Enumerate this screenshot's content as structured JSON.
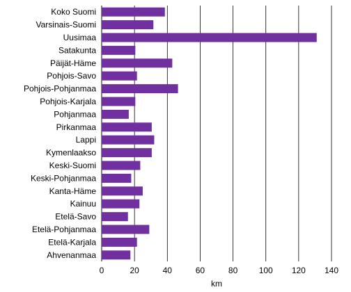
{
  "chart_data": {
    "type": "bar",
    "orientation": "horizontal",
    "categories": [
      "Koko Suomi",
      "Varsinais-Suomi",
      "Uusimaa",
      "Satakunta",
      "Päijät-Häme",
      "Pohjois-Savo",
      "Pohjois-Pohjanmaa",
      "Pohjois-Karjala",
      "Pohjanmaa",
      "Pirkanmaa",
      "Lappi",
      "Kymenlaakso",
      "Keski-Suomi",
      "Keski-Pohjanmaa",
      "Kanta-Häme",
      "Kainuu",
      "Etelä-Savo",
      "Etelä-Pohjanmaa",
      "Etelä-Karjala",
      "Ahvenanmaa"
    ],
    "values": [
      38.5,
      31.5,
      131,
      20.5,
      43,
      21.5,
      46.5,
      20.5,
      16.5,
      30.5,
      32,
      30.5,
      23.5,
      18,
      25,
      23,
      16,
      29,
      21.5,
      17.5
    ],
    "xlabel": "km",
    "xlim": [
      0,
      140
    ],
    "xticks": [
      0,
      20,
      40,
      60,
      80,
      100,
      120,
      140
    ],
    "grid": "vertical",
    "bar_color": "#7030a0",
    "grid_color": "#000000"
  }
}
